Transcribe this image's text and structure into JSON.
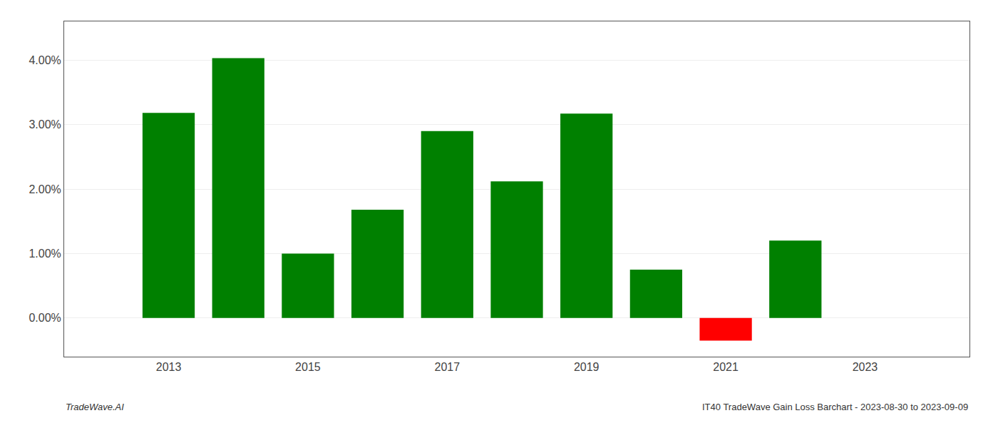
{
  "chart_data": {
    "type": "bar",
    "x": [
      2013,
      2014,
      2015,
      2016,
      2017,
      2018,
      2019,
      2020,
      2021,
      2022
    ],
    "values": [
      0.0318,
      0.0403,
      0.01,
      0.0168,
      0.029,
      0.0212,
      0.0317,
      0.0075,
      -0.0035,
      0.012
    ],
    "colors": [
      "#008000",
      "#008000",
      "#008000",
      "#008000",
      "#008000",
      "#008000",
      "#008000",
      "#008000",
      "#ff0000",
      "#008000"
    ],
    "xlim": [
      2011.5,
      2024.5
    ],
    "xticks": [
      2013,
      2015,
      2017,
      2019,
      2021,
      2023
    ],
    "ylim": [
      -0.006,
      0.046
    ],
    "yticks": [
      {
        "value": 0.0,
        "label": "0.00%"
      },
      {
        "value": 0.01,
        "label": "1.00%"
      },
      {
        "value": 0.02,
        "label": "2.00%"
      },
      {
        "value": 0.03,
        "label": "3.00%"
      },
      {
        "value": 0.04,
        "label": "4.00%"
      }
    ],
    "grid": true,
    "annotations": [
      "TradeWave.AI",
      "IT40 TradeWave Gain Loss Barchart - 2023-08-30 to 2023-09-09"
    ]
  }
}
